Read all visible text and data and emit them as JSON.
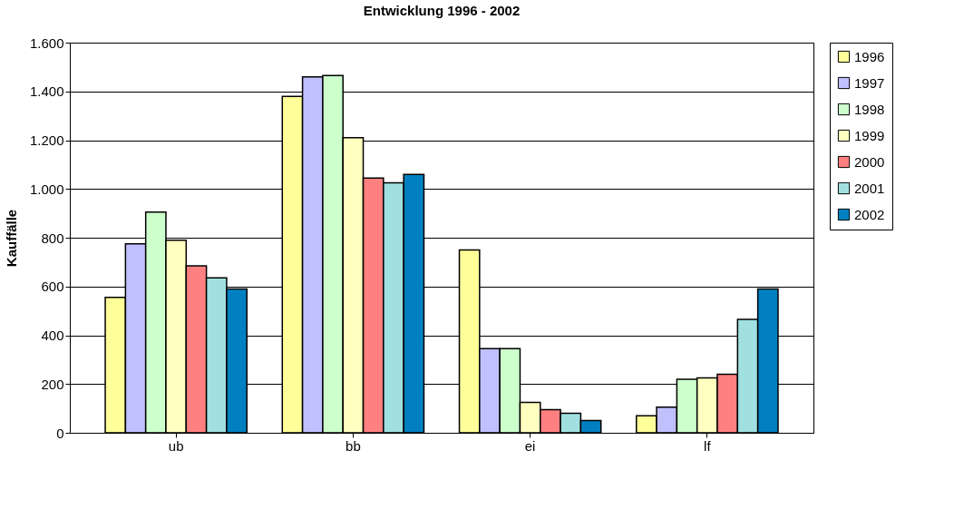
{
  "chart_data": {
    "type": "bar",
    "title": "Entwicklung 1996 - 2002",
    "ylabel": "Kauffälle",
    "categories": [
      "ub",
      "bb",
      "ei",
      "lf"
    ],
    "series": [
      {
        "name": "1996",
        "color": "#ffff99",
        "values": [
          555,
          1380,
          750,
          70
        ]
      },
      {
        "name": "1997",
        "color": "#c0c0ff",
        "values": [
          775,
          1460,
          345,
          105
        ]
      },
      {
        "name": "1998",
        "color": "#ccffcc",
        "values": [
          905,
          1465,
          345,
          220
        ]
      },
      {
        "name": "1999",
        "color": "#ffffc0",
        "values": [
          790,
          1210,
          125,
          225
        ]
      },
      {
        "name": "2000",
        "color": "#ff8080",
        "values": [
          685,
          1045,
          95,
          240
        ]
      },
      {
        "name": "2001",
        "color": "#a0e0e0",
        "values": [
          635,
          1025,
          80,
          465
        ]
      },
      {
        "name": "2002",
        "color": "#0080c0",
        "values": [
          590,
          1060,
          50,
          590
        ]
      }
    ],
    "ylim": [
      0,
      1600
    ],
    "yticks": [
      0,
      200,
      400,
      600,
      800,
      {
        "value": 1000,
        "label": "1.000"
      },
      {
        "value": 1200,
        "label": "1.200"
      },
      {
        "value": 1400,
        "label": "1.400"
      },
      {
        "value": 1600,
        "label": "1.600"
      }
    ],
    "grid": "y",
    "legend": "right"
  }
}
